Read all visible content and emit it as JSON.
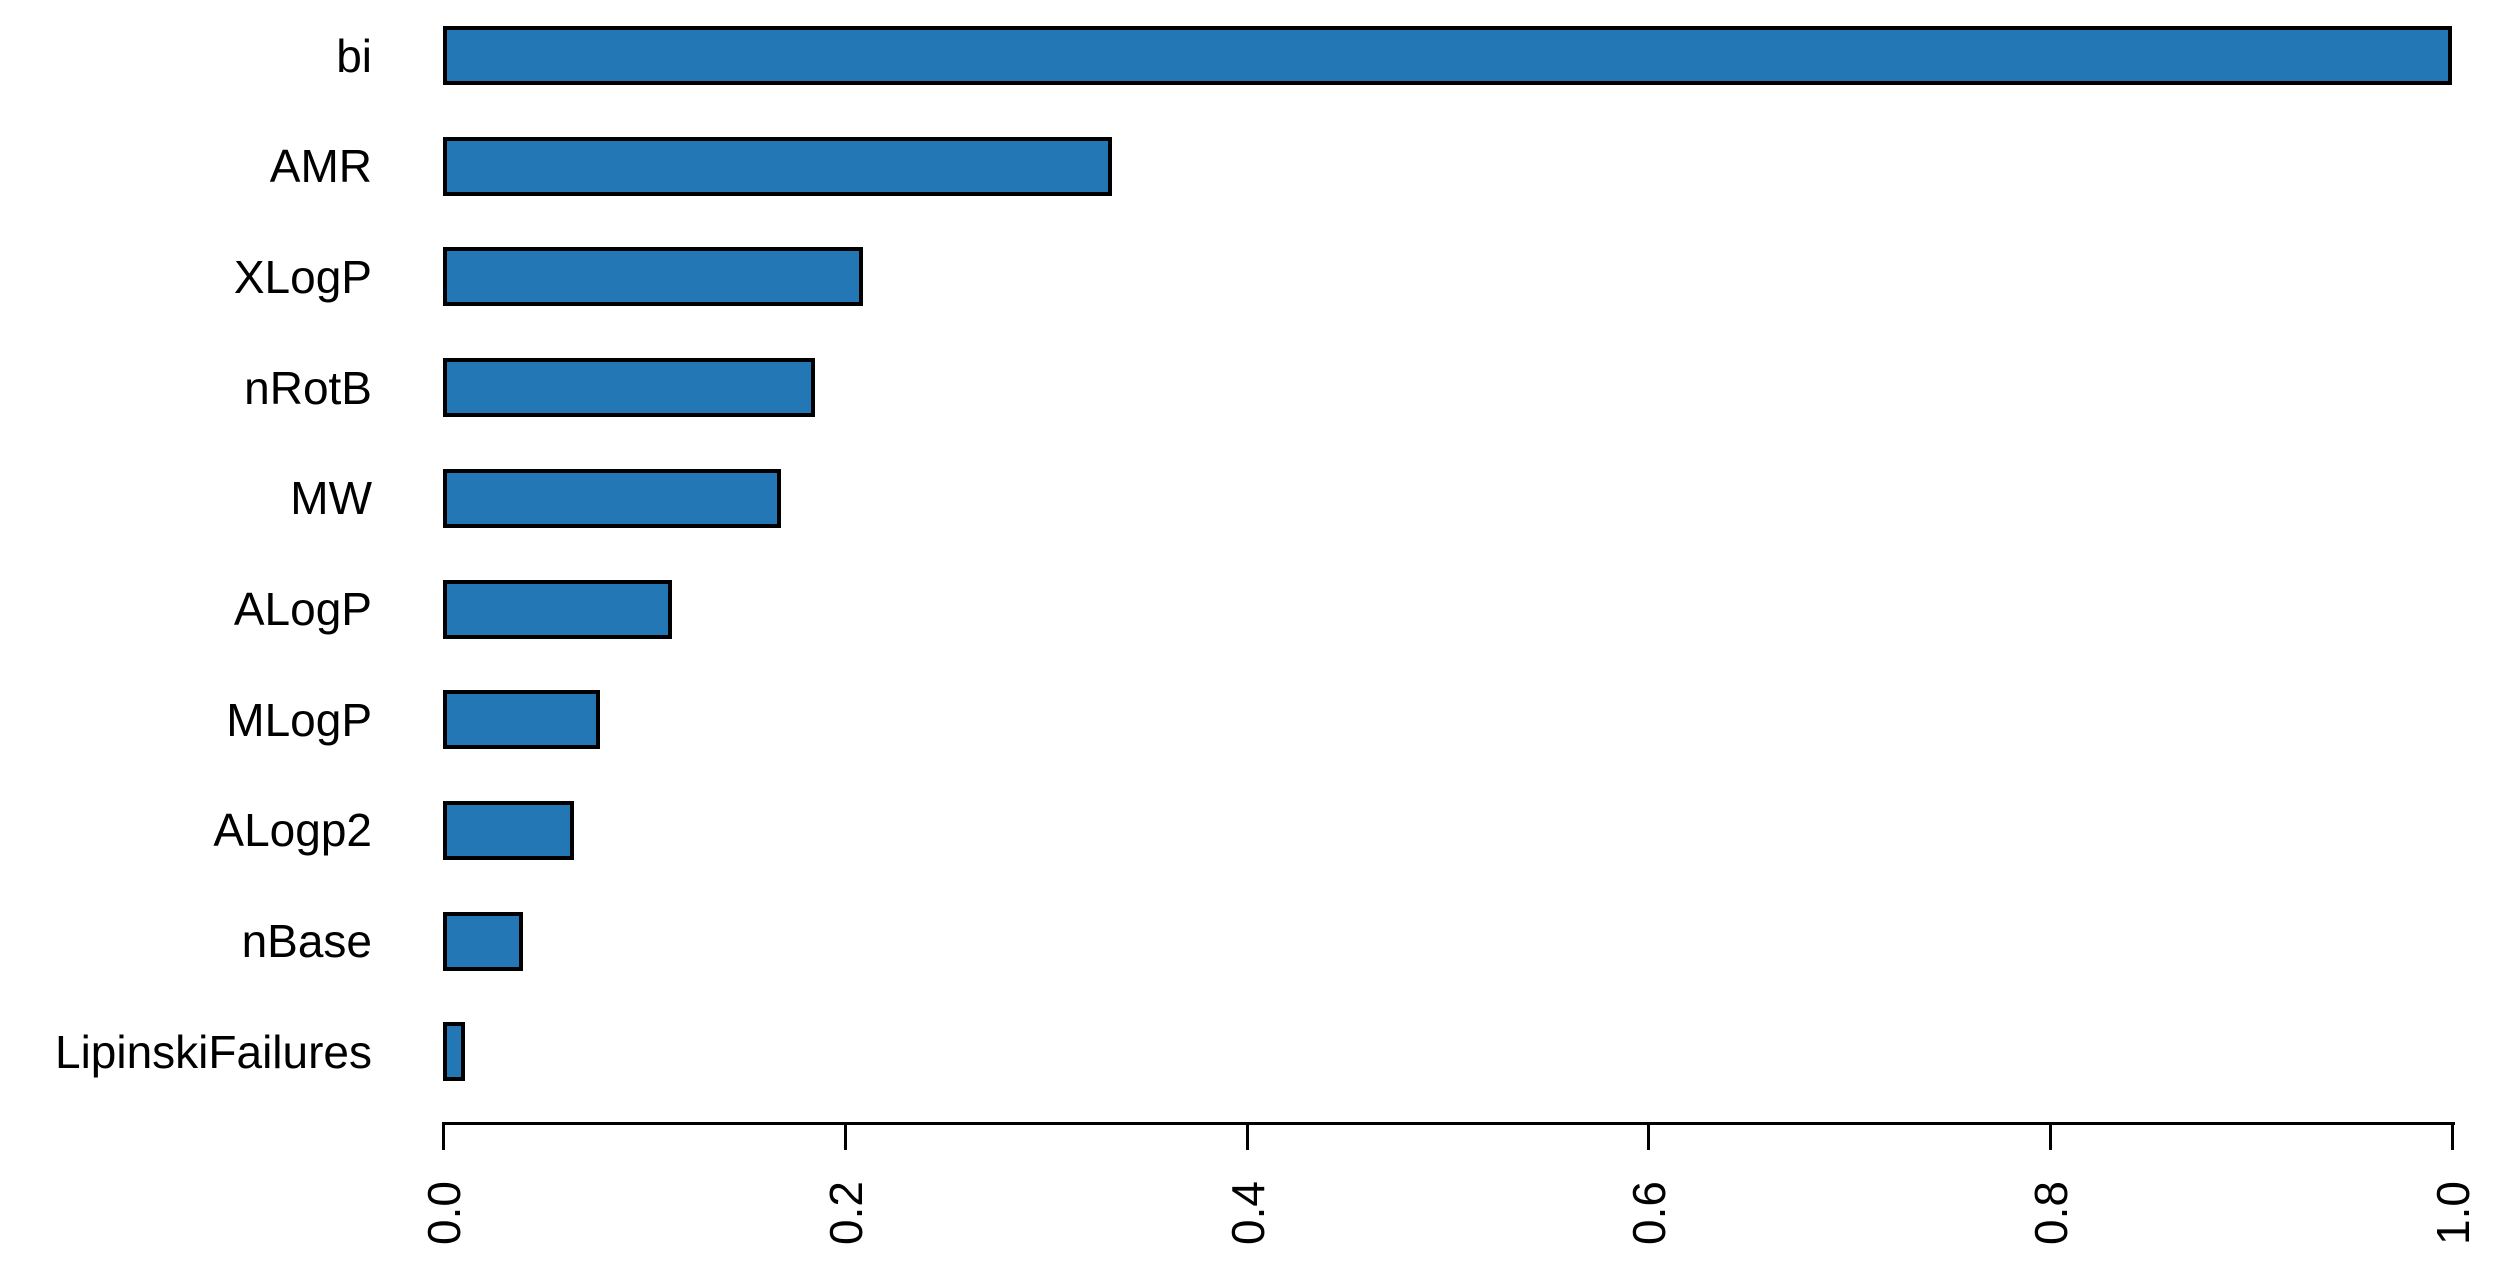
{
  "chart_data": {
    "type": "bar",
    "orientation": "horizontal",
    "title": "",
    "xlabel": "",
    "ylabel": "",
    "grid": false,
    "legend": "none",
    "xlim": [
      0.0,
      1.0
    ],
    "categories": [
      "bi",
      "AMR",
      "XLogP",
      "nRotB",
      "MW",
      "ALogP",
      "MLogP",
      "ALogp2",
      "nBase",
      "LipinskiFailures"
    ],
    "values": [
      1.0,
      0.333,
      0.209,
      0.185,
      0.168,
      0.114,
      0.078,
      0.065,
      0.04,
      0.011
    ],
    "x_tick_labels": [
      "0.0",
      "0.2",
      "0.4",
      "0.6",
      "0.8",
      "1.0"
    ],
    "x_tick_values": [
      0.0,
      0.2,
      0.4,
      0.6,
      0.8,
      1.0
    ],
    "colors": {
      "bar_fill": "#2277B4",
      "bar_border": "#000000",
      "axis": "#000000",
      "text": "#000000",
      "background": "#FFFFFF"
    }
  }
}
